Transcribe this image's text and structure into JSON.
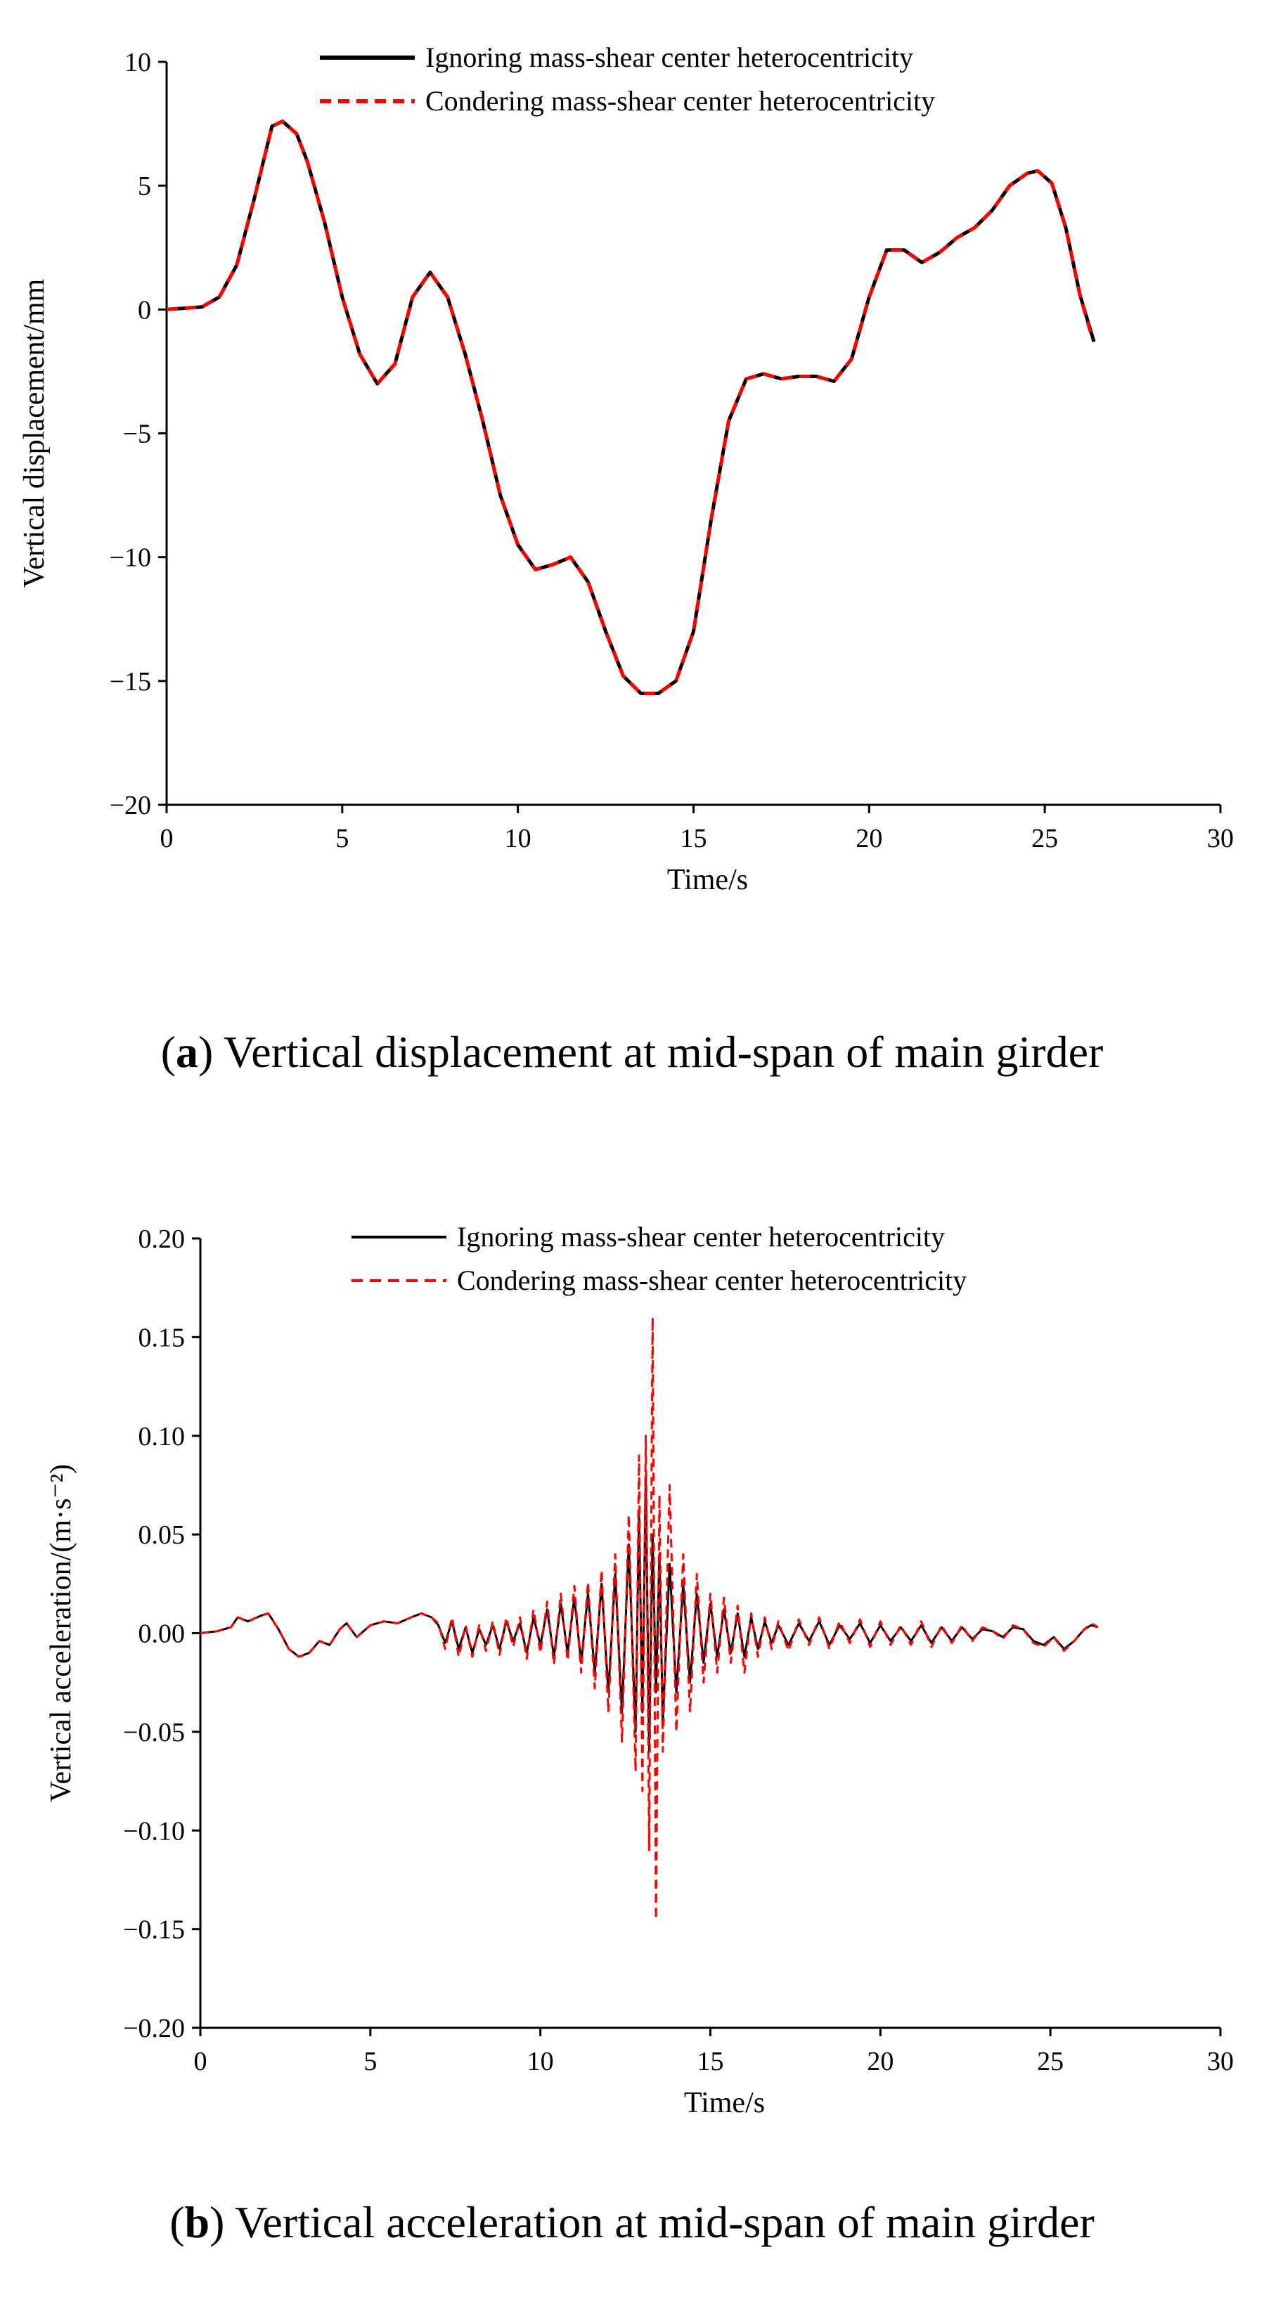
{
  "chart_data": [
    {
      "type": "line",
      "caption_letter": "a",
      "caption_text": " Vertical displacement at mid-span of main girder",
      "xlabel": "Time/s",
      "ylabel": "Vertical displacement/mm",
      "xlim": [
        0,
        30
      ],
      "ylim": [
        -20,
        10
      ],
      "xticks": [
        0,
        5,
        10,
        15,
        20,
        25,
        30
      ],
      "yticks": [
        10,
        5,
        0,
        -5,
        -10,
        -15,
        -20
      ],
      "ytick_labels": [
        "10",
        "5",
        "0",
        "−5",
        "−10",
        "−15",
        "−20"
      ],
      "legend_position": "top-right",
      "series": [
        {
          "name": "Ignoring mass-shear center heterocentricity",
          "color": "#000000",
          "style": "solid",
          "x": [
            0,
            1.0,
            1.5,
            2.0,
            2.5,
            3.0,
            3.3,
            3.7,
            4.0,
            4.5,
            5.0,
            5.5,
            6.0,
            6.5,
            7.0,
            7.5,
            8.0,
            8.5,
            9.0,
            9.5,
            10.0,
            10.5,
            11.0,
            11.5,
            12.0,
            12.5,
            13.0,
            13.5,
            14.0,
            14.5,
            15.0,
            15.5,
            16.0,
            16.5,
            17.0,
            17.5,
            18.0,
            18.5,
            19.0,
            19.5,
            20.0,
            20.5,
            21.0,
            21.5,
            22.0,
            22.5,
            23.0,
            23.5,
            24.0,
            24.5,
            24.8,
            25.2,
            25.6,
            26.0,
            26.4
          ],
          "values": [
            0,
            0.1,
            0.5,
            1.8,
            4.5,
            7.4,
            7.6,
            7.1,
            6.0,
            3.5,
            0.5,
            -1.8,
            -3.0,
            -2.2,
            0.5,
            1.5,
            0.5,
            -1.8,
            -4.5,
            -7.5,
            -9.5,
            -10.5,
            -10.3,
            -10.0,
            -11.0,
            -13.0,
            -14.8,
            -15.5,
            -15.5,
            -15.0,
            -13.0,
            -8.5,
            -4.5,
            -2.8,
            -2.6,
            -2.8,
            -2.7,
            -2.7,
            -2.9,
            -2.0,
            0.5,
            2.4,
            2.4,
            1.9,
            2.3,
            2.9,
            3.3,
            4.0,
            5.0,
            5.5,
            5.6,
            5.1,
            3.3,
            0.6,
            -1.3
          ]
        },
        {
          "name": "Condering mass-shear center heterocentricity",
          "color": "#ff0000",
          "style": "dashed",
          "x": [
            0,
            1.0,
            1.5,
            2.0,
            2.5,
            3.0,
            3.3,
            3.7,
            4.0,
            4.5,
            5.0,
            5.5,
            6.0,
            6.5,
            7.0,
            7.5,
            8.0,
            8.5,
            9.0,
            9.5,
            10.0,
            10.5,
            11.0,
            11.5,
            12.0,
            12.5,
            13.0,
            13.5,
            14.0,
            14.5,
            15.0,
            15.5,
            16.0,
            16.5,
            17.0,
            17.5,
            18.0,
            18.5,
            19.0,
            19.5,
            20.0,
            20.5,
            21.0,
            21.5,
            22.0,
            22.5,
            23.0,
            23.5,
            24.0,
            24.5,
            24.8,
            25.2,
            25.6,
            26.0,
            26.3
          ],
          "values": [
            0,
            0.1,
            0.5,
            1.8,
            4.5,
            7.4,
            7.6,
            7.1,
            6.0,
            3.5,
            0.5,
            -1.8,
            -3.0,
            -2.2,
            0.5,
            1.5,
            0.5,
            -1.8,
            -4.5,
            -7.5,
            -9.5,
            -10.5,
            -10.3,
            -10.0,
            -11.0,
            -13.0,
            -14.8,
            -15.5,
            -15.5,
            -15.0,
            -13.0,
            -8.5,
            -4.5,
            -2.8,
            -2.6,
            -2.8,
            -2.7,
            -2.7,
            -2.9,
            -2.0,
            0.5,
            2.4,
            2.4,
            1.9,
            2.3,
            2.9,
            3.3,
            4.0,
            5.0,
            5.5,
            5.6,
            5.1,
            3.3,
            0.6,
            -0.9
          ]
        }
      ]
    },
    {
      "type": "line",
      "caption_letter": "b",
      "caption_text": " Vertical acceleration at mid-span of main girder",
      "xlabel": "Time/s",
      "ylabel": "Vertical acceleration/(m·s⁻²)",
      "xlim": [
        0,
        30
      ],
      "ylim": [
        -0.2,
        0.2
      ],
      "xticks": [
        0,
        5,
        10,
        15,
        20,
        25,
        30
      ],
      "yticks": [
        0.2,
        0.15,
        0.1,
        0.05,
        0.0,
        -0.05,
        -0.1,
        -0.15,
        -0.2
      ],
      "ytick_labels": [
        "0.20",
        "0.15",
        "0.10",
        "0.05",
        "0.00",
        "−0.05",
        "−0.10",
        "−0.15",
        "−0.20"
      ],
      "legend_position": "top-right",
      "series": [
        {
          "name": "Ignoring mass-shear center heterocentricity",
          "color": "#000000",
          "style": "solid",
          "x": [
            0.0,
            0.5,
            0.9,
            1.1,
            1.4,
            1.8,
            2.0,
            2.3,
            2.6,
            2.9,
            3.2,
            3.5,
            3.8,
            4.1,
            4.3,
            4.6,
            5.0,
            5.4,
            5.8,
            6.2,
            6.5,
            6.8,
            7.0,
            7.2,
            7.4,
            7.6,
            7.8,
            8.0,
            8.2,
            8.4,
            8.6,
            8.8,
            9.0,
            9.2,
            9.4,
            9.6,
            9.8,
            10.0,
            10.2,
            10.4,
            10.6,
            10.8,
            11.0,
            11.2,
            11.4,
            11.6,
            11.8,
            12.0,
            12.2,
            12.4,
            12.6,
            12.8,
            12.9,
            13.0,
            13.1,
            13.2,
            13.3,
            13.4,
            13.5,
            13.6,
            13.8,
            14.0,
            14.2,
            14.4,
            14.6,
            14.8,
            15.0,
            15.2,
            15.4,
            15.6,
            15.8,
            16.0,
            16.2,
            16.4,
            16.6,
            16.8,
            17.0,
            17.3,
            17.6,
            17.9,
            18.2,
            18.5,
            18.8,
            19.1,
            19.4,
            19.7,
            20.0,
            20.3,
            20.6,
            20.9,
            21.2,
            21.5,
            21.8,
            22.1,
            22.4,
            22.7,
            23.0,
            23.3,
            23.6,
            23.9,
            24.2,
            24.5,
            24.8,
            25.1,
            25.4,
            25.7,
            26.0,
            26.2,
            26.4
          ],
          "values": [
            0.0,
            0.001,
            0.003,
            0.008,
            0.006,
            0.009,
            0.01,
            0.002,
            -0.008,
            -0.012,
            -0.01,
            -0.004,
            -0.006,
            0.002,
            0.005,
            -0.002,
            0.004,
            0.006,
            0.005,
            0.008,
            0.01,
            0.008,
            0.004,
            -0.005,
            0.006,
            -0.008,
            0.003,
            -0.01,
            0.002,
            -0.006,
            0.004,
            -0.008,
            0.006,
            -0.004,
            0.005,
            -0.01,
            0.008,
            -0.006,
            0.012,
            -0.012,
            0.015,
            -0.01,
            0.018,
            -0.015,
            0.02,
            -0.02,
            0.025,
            -0.03,
            0.03,
            -0.04,
            0.045,
            -0.05,
            0.06,
            -0.04,
            0.08,
            -0.06,
            0.05,
            -0.03,
            0.04,
            -0.045,
            0.035,
            -0.03,
            0.025,
            -0.025,
            0.02,
            -0.015,
            0.015,
            -0.012,
            0.012,
            -0.01,
            0.01,
            -0.012,
            0.008,
            -0.008,
            0.006,
            -0.005,
            0.004,
            -0.006,
            0.005,
            -0.004,
            0.006,
            -0.006,
            0.004,
            -0.003,
            0.005,
            -0.005,
            0.004,
            -0.004,
            0.003,
            -0.004,
            0.004,
            -0.005,
            0.003,
            -0.004,
            0.003,
            -0.003,
            0.002,
            0.001,
            -0.002,
            0.003,
            0.002,
            -0.004,
            -0.006,
            -0.002,
            -0.008,
            -0.004,
            0.002,
            0.004,
            0.003
          ]
        },
        {
          "name": "Condering mass-shear center heterocentricity",
          "color": "#ff0000",
          "style": "dashed",
          "x": [
            0.0,
            0.5,
            0.9,
            1.1,
            1.4,
            1.8,
            2.0,
            2.3,
            2.6,
            2.9,
            3.2,
            3.5,
            3.8,
            4.1,
            4.3,
            4.6,
            5.0,
            5.4,
            5.8,
            6.2,
            6.5,
            6.8,
            7.0,
            7.2,
            7.4,
            7.6,
            7.8,
            8.0,
            8.2,
            8.4,
            8.6,
            8.8,
            9.0,
            9.2,
            9.4,
            9.6,
            9.8,
            10.0,
            10.2,
            10.4,
            10.6,
            10.8,
            11.0,
            11.2,
            11.4,
            11.6,
            11.8,
            12.0,
            12.2,
            12.4,
            12.6,
            12.8,
            12.9,
            13.0,
            13.1,
            13.2,
            13.3,
            13.4,
            13.5,
            13.6,
            13.8,
            14.0,
            14.2,
            14.4,
            14.6,
            14.8,
            15.0,
            15.2,
            15.4,
            15.6,
            15.8,
            16.0,
            16.2,
            16.4,
            16.6,
            16.8,
            17.0,
            17.3,
            17.6,
            17.9,
            18.2,
            18.5,
            18.8,
            19.1,
            19.4,
            19.7,
            20.0,
            20.3,
            20.6,
            20.9,
            21.2,
            21.5,
            21.8,
            22.1,
            22.4,
            22.7,
            23.0,
            23.3,
            23.6,
            23.9,
            24.2,
            24.5,
            24.8,
            25.1,
            25.4,
            25.7,
            26.0,
            26.2,
            26.4
          ],
          "values": [
            0.0,
            0.001,
            0.003,
            0.008,
            0.006,
            0.009,
            0.01,
            0.002,
            -0.008,
            -0.012,
            -0.01,
            -0.004,
            -0.006,
            0.002,
            0.005,
            -0.002,
            0.004,
            0.006,
            0.005,
            0.008,
            0.01,
            0.008,
            0.005,
            -0.008,
            0.008,
            -0.012,
            0.004,
            -0.012,
            0.004,
            -0.009,
            0.006,
            -0.011,
            0.008,
            -0.007,
            0.008,
            -0.013,
            0.012,
            -0.01,
            0.016,
            -0.016,
            0.02,
            -0.014,
            0.024,
            -0.02,
            0.026,
            -0.028,
            0.032,
            -0.04,
            0.04,
            -0.055,
            0.06,
            -0.07,
            0.09,
            -0.08,
            0.1,
            -0.11,
            0.16,
            -0.145,
            0.07,
            -0.06,
            0.075,
            -0.05,
            0.04,
            -0.04,
            0.03,
            -0.025,
            0.02,
            -0.02,
            0.018,
            -0.015,
            0.014,
            -0.02,
            0.01,
            -0.012,
            0.008,
            -0.008,
            0.006,
            -0.009,
            0.007,
            -0.006,
            0.008,
            -0.008,
            0.006,
            -0.005,
            0.007,
            -0.007,
            0.006,
            -0.006,
            0.004,
            -0.006,
            0.006,
            -0.007,
            0.004,
            -0.005,
            0.004,
            -0.004,
            0.003,
            0.001,
            -0.003,
            0.004,
            0.002,
            -0.005,
            -0.007,
            -0.002,
            -0.009,
            -0.004,
            0.002,
            0.005,
            0.003
          ]
        }
      ]
    }
  ]
}
